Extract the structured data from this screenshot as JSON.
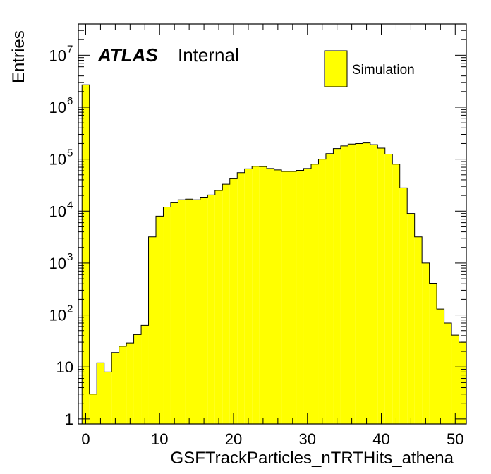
{
  "chart_data": {
    "type": "bar",
    "style": "histogram",
    "xlabel": "GSFTrackParticles_nTRTHits_athena",
    "ylabel": "Entries",
    "label_main": "ATLAS",
    "label_sub": "Internal",
    "xlim": [
      -1,
      51.5
    ],
    "ylim": [
      0.8,
      40000000
    ],
    "yscale": "log",
    "bin_width": 1,
    "fill_color": "#ffff00",
    "line_color": "#000000",
    "legend_position": "top-right",
    "x_ticks": [
      0,
      10,
      20,
      30,
      40,
      50
    ],
    "y_ticks": [
      {
        "value": 1,
        "base": "1",
        "exp": ""
      },
      {
        "value": 10,
        "base": "10",
        "exp": ""
      },
      {
        "value": 100,
        "base": "10",
        "exp": "2"
      },
      {
        "value": 1000,
        "base": "10",
        "exp": "3"
      },
      {
        "value": 10000,
        "base": "10",
        "exp": "4"
      },
      {
        "value": 100000,
        "base": "10",
        "exp": "5"
      },
      {
        "value": 1000000,
        "base": "10",
        "exp": "6"
      },
      {
        "value": 10000000,
        "base": "10",
        "exp": "7"
      }
    ],
    "series": [
      {
        "name": "Simulation",
        "bin_starts": [
          -0.5,
          0.5,
          1.5,
          2.5,
          3.5,
          4.5,
          5.5,
          6.5,
          7.5,
          8.5,
          9.5,
          10.5,
          11.5,
          12.5,
          13.5,
          14.5,
          15.5,
          16.5,
          17.5,
          18.5,
          19.5,
          20.5,
          21.5,
          22.5,
          23.5,
          24.5,
          25.5,
          26.5,
          27.5,
          28.5,
          29.5,
          30.5,
          31.5,
          32.5,
          33.5,
          34.5,
          35.5,
          36.5,
          37.5,
          38.5,
          39.5,
          40.5,
          41.5,
          42.5,
          43.5,
          44.5,
          45.5,
          46.5,
          47.5,
          48.5,
          49.5,
          50.5
        ],
        "values": [
          2700000,
          3,
          12,
          8,
          19,
          25,
          29,
          42,
          63,
          3200,
          8000,
          12000,
          14500,
          16500,
          17000,
          16500,
          18000,
          20500,
          25000,
          33000,
          42000,
          55000,
          65000,
          73000,
          72000,
          66000,
          62000,
          58000,
          58000,
          61000,
          66000,
          80000,
          100000,
          128000,
          160000,
          180000,
          195000,
          200000,
          205000,
          190000,
          163000,
          125000,
          80000,
          28000,
          9000,
          3200,
          1000,
          410,
          130,
          70,
          41,
          30
        ]
      }
    ]
  }
}
